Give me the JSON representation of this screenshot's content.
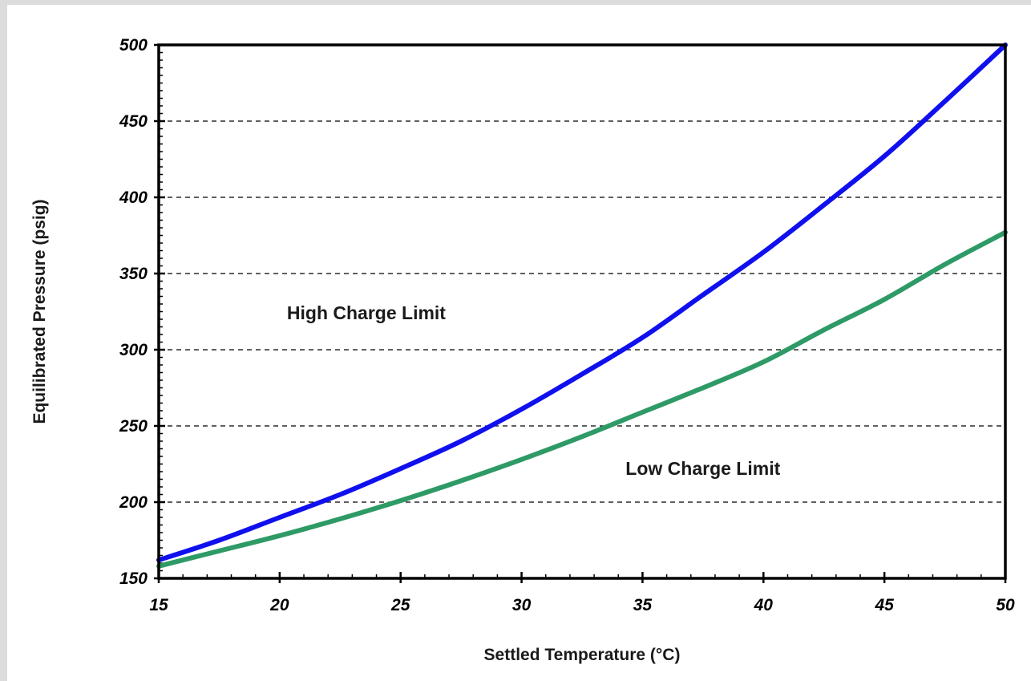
{
  "chart_data": {
    "type": "line",
    "title": "",
    "xlabel": "Settled Temperature (°C)",
    "ylabel": "Equilibrated Pressure (psig)",
    "xlim": [
      15,
      50
    ],
    "ylim": [
      150,
      500
    ],
    "xticks": [
      15,
      20,
      25,
      30,
      35,
      40,
      45,
      50
    ],
    "yticks": [
      150,
      200,
      250,
      300,
      350,
      400,
      450,
      500
    ],
    "grid": "horizontal dashed",
    "legend": "none",
    "annotations": [
      {
        "text": "High Charge Limit",
        "series": "High Charge Limit"
      },
      {
        "text": "Low Charge Limit",
        "series": "Low Charge Limit"
      }
    ],
    "series": [
      {
        "name": "High Charge Limit",
        "color": "#1010ee",
        "x": [
          15,
          17.5,
          20,
          22.5,
          25,
          27.5,
          30,
          32.5,
          35,
          37.5,
          40,
          42.5,
          45,
          47.5,
          50
        ],
        "y": [
          162,
          175,
          190,
          205,
          222,
          240,
          261,
          284,
          308,
          336,
          364,
          395,
          427,
          463,
          500
        ]
      },
      {
        "name": "Low Charge Limit",
        "color": "#2e9a66",
        "x": [
          15,
          17.5,
          20,
          22.5,
          25,
          27.5,
          30,
          32.5,
          35,
          37.5,
          40,
          42.5,
          45,
          47.5,
          50
        ],
        "y": [
          158,
          168,
          178,
          189,
          201,
          214,
          228,
          243,
          259,
          275,
          292,
          313,
          333,
          356,
          377
        ]
      }
    ]
  }
}
